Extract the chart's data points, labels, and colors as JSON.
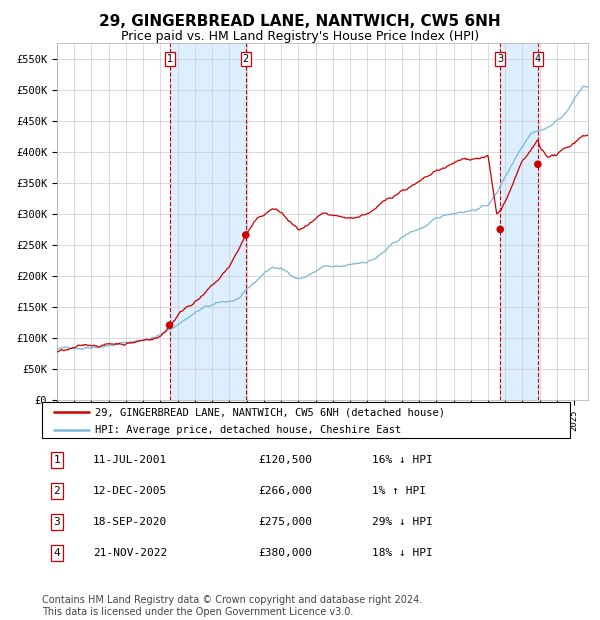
{
  "title": "29, GINGERBREAD LANE, NANTWICH, CW5 6NH",
  "subtitle": "Price paid vs. HM Land Registry's House Price Index (HPI)",
  "title_fontsize": 11,
  "subtitle_fontsize": 9,
  "ylabel_ticks": [
    "£0",
    "£50K",
    "£100K",
    "£150K",
    "£200K",
    "£250K",
    "£300K",
    "£350K",
    "£400K",
    "£450K",
    "£500K",
    "£550K"
  ],
  "ytick_values": [
    0,
    50000,
    100000,
    150000,
    200000,
    250000,
    300000,
    350000,
    400000,
    450000,
    500000,
    550000
  ],
  "ylim": [
    0,
    575000
  ],
  "xlim_start": 1995.0,
  "xlim_end": 2025.8,
  "hpi_color": "#7ab8d9",
  "price_color": "#cc0000",
  "sale_marker_color": "#cc0000",
  "vspan_color": "#ddeeff",
  "vline_color": "#cc0000",
  "grid_color": "#cccccc",
  "background_color": "#ffffff",
  "legend_line_red": "29, GINGERBREAD LANE, NANTWICH, CW5 6NH (detached house)",
  "legend_line_blue": "HPI: Average price, detached house, Cheshire East",
  "transactions": [
    {
      "num": 1,
      "date": "11-JUL-2001",
      "price": 120500,
      "pct": "16%",
      "dir": "↓",
      "year": 2001.53
    },
    {
      "num": 2,
      "date": "12-DEC-2005",
      "price": 266000,
      "pct": "1%",
      "dir": "↑",
      "year": 2005.95
    },
    {
      "num": 3,
      "date": "18-SEP-2020",
      "price": 275000,
      "pct": "29%",
      "dir": "↓",
      "year": 2020.71
    },
    {
      "num": 4,
      "date": "21-NOV-2022",
      "price": 380000,
      "pct": "18%",
      "dir": "↓",
      "year": 2022.89
    }
  ],
  "hpi_anchors": [
    [
      1995.0,
      82000
    ],
    [
      1995.5,
      83000
    ],
    [
      1996.0,
      84500
    ],
    [
      1996.5,
      86000
    ],
    [
      1997.0,
      89000
    ],
    [
      1997.5,
      92000
    ],
    [
      1998.0,
      94000
    ],
    [
      1998.5,
      96000
    ],
    [
      1999.0,
      98000
    ],
    [
      1999.5,
      100000
    ],
    [
      2000.0,
      103000
    ],
    [
      2000.5,
      107000
    ],
    [
      2001.0,
      112000
    ],
    [
      2001.5,
      118000
    ],
    [
      2002.0,
      128000
    ],
    [
      2002.5,
      138000
    ],
    [
      2003.0,
      148000
    ],
    [
      2003.5,
      155000
    ],
    [
      2004.0,
      158000
    ],
    [
      2004.5,
      161000
    ],
    [
      2005.0,
      163000
    ],
    [
      2005.5,
      167000
    ],
    [
      2006.0,
      178000
    ],
    [
      2006.5,
      190000
    ],
    [
      2007.0,
      205000
    ],
    [
      2007.5,
      215000
    ],
    [
      2008.0,
      212000
    ],
    [
      2008.5,
      204000
    ],
    [
      2009.0,
      198000
    ],
    [
      2009.5,
      202000
    ],
    [
      2010.0,
      210000
    ],
    [
      2010.5,
      218000
    ],
    [
      2011.0,
      215000
    ],
    [
      2011.5,
      213000
    ],
    [
      2012.0,
      215000
    ],
    [
      2012.5,
      218000
    ],
    [
      2013.0,
      222000
    ],
    [
      2013.5,
      228000
    ],
    [
      2014.0,
      238000
    ],
    [
      2014.5,
      248000
    ],
    [
      2015.0,
      258000
    ],
    [
      2015.5,
      266000
    ],
    [
      2016.0,
      272000
    ],
    [
      2016.5,
      278000
    ],
    [
      2017.0,
      285000
    ],
    [
      2017.5,
      291000
    ],
    [
      2018.0,
      296000
    ],
    [
      2018.5,
      300000
    ],
    [
      2019.0,
      303000
    ],
    [
      2019.5,
      307000
    ],
    [
      2020.0,
      312000
    ],
    [
      2020.5,
      330000
    ],
    [
      2021.0,
      358000
    ],
    [
      2021.5,
      385000
    ],
    [
      2022.0,
      410000
    ],
    [
      2022.5,
      435000
    ],
    [
      2023.0,
      440000
    ],
    [
      2023.5,
      445000
    ],
    [
      2024.0,
      455000
    ],
    [
      2024.5,
      468000
    ],
    [
      2025.0,
      490000
    ],
    [
      2025.5,
      510000
    ]
  ],
  "price_anchors": [
    [
      1995.0,
      78000
    ],
    [
      1996.0,
      81000
    ],
    [
      1997.0,
      84000
    ],
    [
      1998.0,
      87000
    ],
    [
      1999.0,
      90000
    ],
    [
      2000.0,
      95000
    ],
    [
      2001.0,
      102000
    ],
    [
      2001.53,
      120500
    ],
    [
      2002.0,
      138000
    ],
    [
      2002.5,
      152000
    ],
    [
      2003.0,
      163000
    ],
    [
      2003.5,
      172000
    ],
    [
      2004.0,
      185000
    ],
    [
      2004.5,
      198000
    ],
    [
      2005.0,
      215000
    ],
    [
      2005.5,
      240000
    ],
    [
      2005.95,
      266000
    ],
    [
      2006.0,
      268000
    ],
    [
      2006.5,
      285000
    ],
    [
      2007.0,
      295000
    ],
    [
      2007.5,
      305000
    ],
    [
      2008.0,
      298000
    ],
    [
      2008.5,
      282000
    ],
    [
      2009.0,
      268000
    ],
    [
      2009.5,
      272000
    ],
    [
      2010.0,
      278000
    ],
    [
      2010.5,
      285000
    ],
    [
      2011.0,
      278000
    ],
    [
      2011.5,
      274000
    ],
    [
      2012.0,
      272000
    ],
    [
      2012.5,
      276000
    ],
    [
      2013.0,
      282000
    ],
    [
      2013.5,
      288000
    ],
    [
      2014.0,
      298000
    ],
    [
      2014.5,
      308000
    ],
    [
      2015.0,
      318000
    ],
    [
      2015.5,
      325000
    ],
    [
      2016.0,
      330000
    ],
    [
      2016.5,
      336000
    ],
    [
      2017.0,
      342000
    ],
    [
      2017.5,
      348000
    ],
    [
      2018.0,
      353000
    ],
    [
      2018.5,
      358000
    ],
    [
      2019.0,
      360000
    ],
    [
      2019.5,
      363000
    ],
    [
      2020.0,
      365000
    ],
    [
      2020.5,
      270000
    ],
    [
      2020.71,
      275000
    ],
    [
      2021.0,
      290000
    ],
    [
      2021.5,
      320000
    ],
    [
      2022.0,
      350000
    ],
    [
      2022.5,
      365000
    ],
    [
      2022.89,
      380000
    ],
    [
      2023.0,
      368000
    ],
    [
      2023.5,
      355000
    ],
    [
      2024.0,
      358000
    ],
    [
      2024.5,
      365000
    ],
    [
      2025.0,
      375000
    ],
    [
      2025.5,
      390000
    ]
  ],
  "footnote": "Contains HM Land Registry data © Crown copyright and database right 2024.\nThis data is licensed under the Open Government Licence v3.0.",
  "footnote_fontsize": 7
}
